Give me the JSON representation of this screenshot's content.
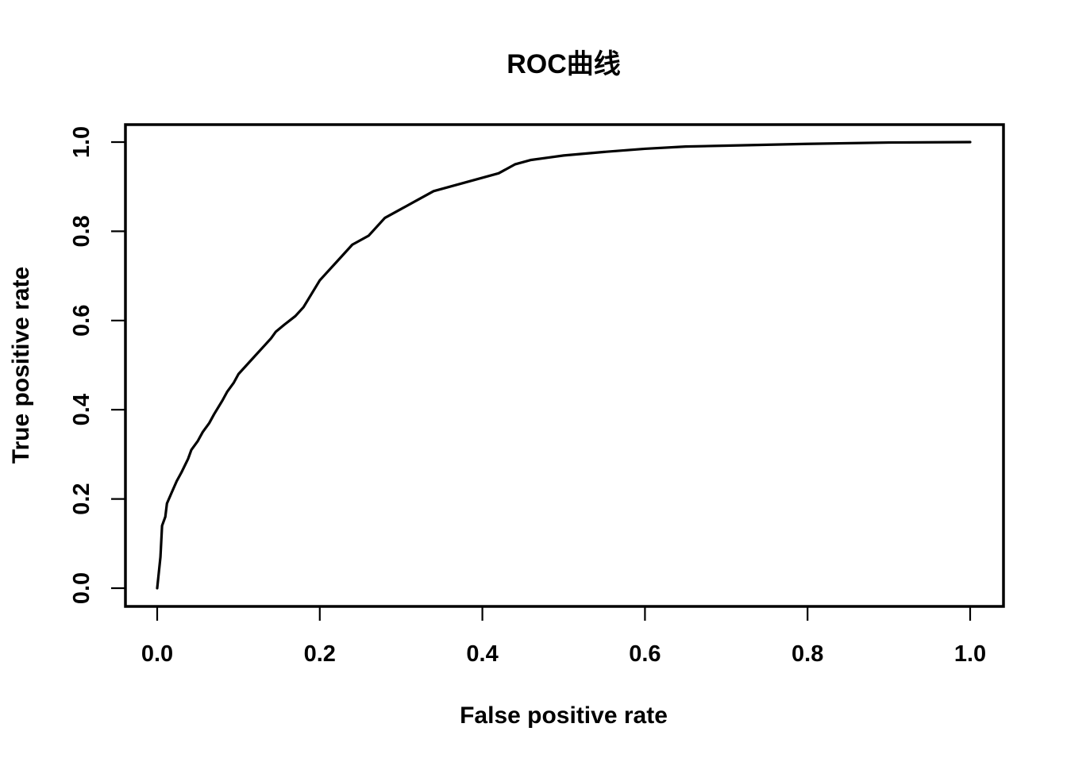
{
  "chart_data": {
    "type": "line",
    "title": "ROC曲线",
    "xlabel": "False positive rate",
    "ylabel": "True positive rate",
    "xlim": [
      0.0,
      1.0
    ],
    "ylim": [
      0.0,
      1.0
    ],
    "xticks": [
      "0.0",
      "0.2",
      "0.4",
      "0.6",
      "0.8",
      "1.0"
    ],
    "yticks": [
      "0.0",
      "0.2",
      "0.4",
      "0.6",
      "0.8",
      "1.0"
    ],
    "grid": false,
    "legend": "none",
    "line_color": "#000000",
    "series": [
      {
        "x": [
          0.0,
          0.004,
          0.006,
          0.01,
          0.012,
          0.018,
          0.024,
          0.03,
          0.038,
          0.042,
          0.05,
          0.056,
          0.064,
          0.07,
          0.08,
          0.086,
          0.094,
          0.1,
          0.11,
          0.12,
          0.13,
          0.14,
          0.146,
          0.156,
          0.17,
          0.18,
          0.19,
          0.2,
          0.21,
          0.22,
          0.23,
          0.24,
          0.25,
          0.26,
          0.27,
          0.28,
          0.3,
          0.32,
          0.34,
          0.36,
          0.38,
          0.4,
          0.42,
          0.44,
          0.46,
          0.48,
          0.5,
          0.55,
          0.6,
          0.65,
          0.7,
          0.8,
          0.9,
          1.0
        ],
        "y": [
          0.0,
          0.07,
          0.14,
          0.16,
          0.19,
          0.215,
          0.24,
          0.26,
          0.29,
          0.31,
          0.33,
          0.35,
          0.37,
          0.39,
          0.42,
          0.44,
          0.46,
          0.48,
          0.5,
          0.52,
          0.54,
          0.56,
          0.575,
          0.59,
          0.61,
          0.63,
          0.66,
          0.69,
          0.71,
          0.73,
          0.75,
          0.77,
          0.78,
          0.79,
          0.81,
          0.83,
          0.85,
          0.87,
          0.89,
          0.9,
          0.91,
          0.92,
          0.93,
          0.95,
          0.96,
          0.965,
          0.97,
          0.978,
          0.985,
          0.99,
          0.992,
          0.996,
          0.999,
          1.0
        ]
      }
    ]
  }
}
